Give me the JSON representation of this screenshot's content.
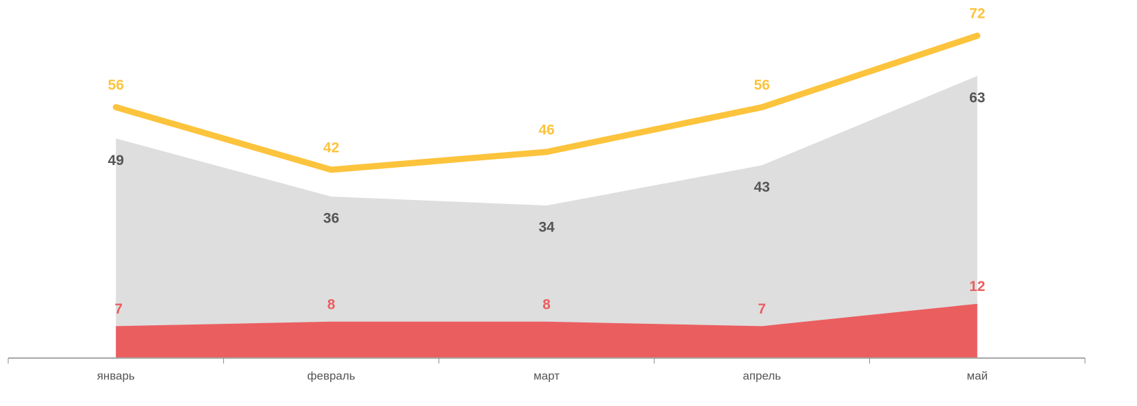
{
  "chart_data": {
    "type": "line",
    "categories": [
      "январь",
      "февраль",
      "март",
      "апрель",
      "май"
    ],
    "ylim": [
      0,
      80
    ],
    "series": [
      {
        "kind": "area",
        "color": "#dedede",
        "label_color": "#555555",
        "values": [
          49,
          36,
          34,
          43,
          63
        ]
      },
      {
        "kind": "area",
        "color": "#eb5e60",
        "label_color": "#eb5e60",
        "values": [
          7,
          8,
          8,
          7,
          12
        ]
      },
      {
        "kind": "line",
        "color": "#fcc33c",
        "label_color": "#fcc33c",
        "values": [
          56,
          42,
          46,
          56,
          72
        ]
      }
    ]
  }
}
